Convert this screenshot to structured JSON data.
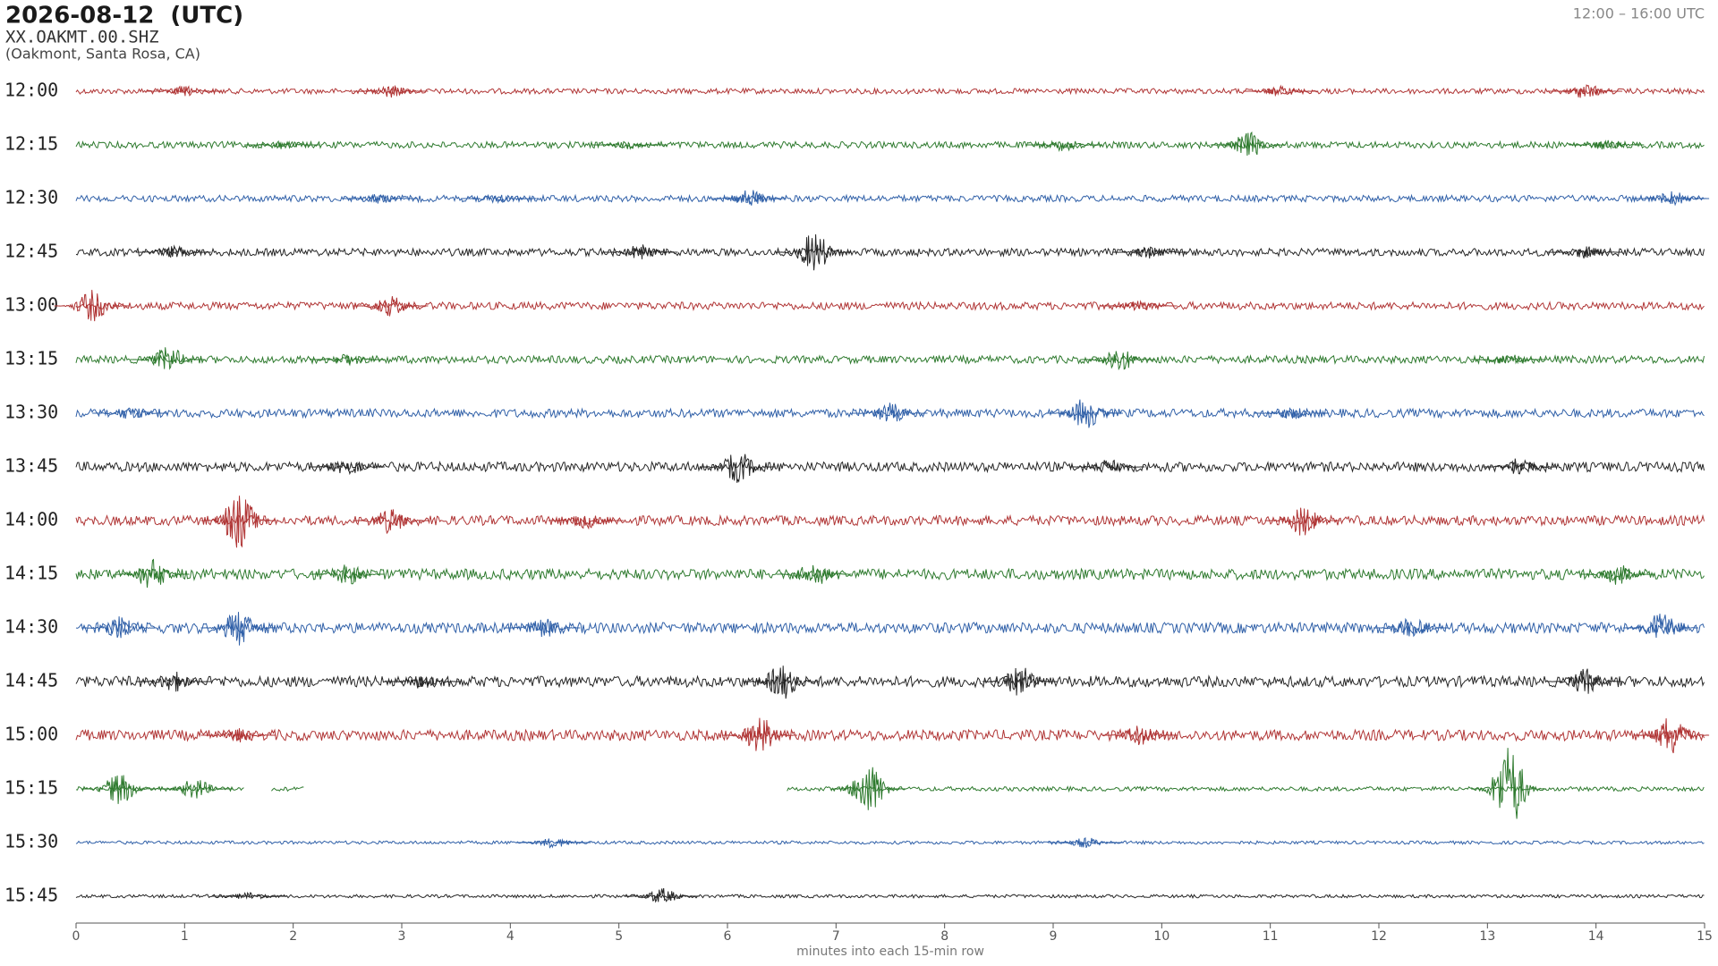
{
  "chart_data": {
    "type": "helicorder",
    "title": "2026-08-12  (UTC)",
    "station": "XX.OAKMT.00.SHZ",
    "location": "(Oakmont, Santa Rosa, CA)",
    "time_range": "12:00 – 16:00 UTC",
    "xlabel": "minutes into each 15-min row",
    "xlim": [
      0,
      15
    ],
    "xticks": [
      0,
      1,
      2,
      3,
      4,
      5,
      6,
      7,
      8,
      9,
      10,
      11,
      12,
      13,
      14,
      15
    ],
    "colors": [
      "#b03535",
      "#2e7a2e",
      "#3060a8",
      "#262626"
    ],
    "rows": [
      {
        "label": "12:00",
        "noise": 0.05,
        "bursts": [
          {
            "x": 1.0,
            "amp": 0.1
          },
          {
            "x": 2.9,
            "amp": 0.12
          },
          {
            "x": 11.1,
            "amp": 0.1
          },
          {
            "x": 13.9,
            "amp": 0.15
          }
        ]
      },
      {
        "label": "12:15",
        "noise": 0.06,
        "bursts": [
          {
            "x": 1.9,
            "amp": 0.1
          },
          {
            "x": 5.1,
            "amp": 0.08
          },
          {
            "x": 9.1,
            "amp": 0.12
          },
          {
            "x": 10.8,
            "amp": 0.25
          },
          {
            "x": 14.1,
            "amp": 0.1
          }
        ]
      },
      {
        "label": "12:30",
        "noise": 0.06,
        "bursts": [
          {
            "x": 2.8,
            "amp": 0.1
          },
          {
            "x": 3.9,
            "amp": 0.1
          },
          {
            "x": 6.2,
            "amp": 0.18
          },
          {
            "x": 14.7,
            "amp": 0.15
          }
        ]
      },
      {
        "label": "12:45",
        "noise": 0.07,
        "bursts": [
          {
            "x": 0.9,
            "amp": 0.12
          },
          {
            "x": 5.2,
            "amp": 0.15
          },
          {
            "x": 6.8,
            "amp": 0.38
          },
          {
            "x": 9.9,
            "amp": 0.12
          },
          {
            "x": 13.9,
            "amp": 0.12
          }
        ]
      },
      {
        "label": "13:00",
        "noise": 0.07,
        "bursts": [
          {
            "x": 0.15,
            "amp": 0.3
          },
          {
            "x": 2.9,
            "amp": 0.2
          },
          {
            "x": 9.8,
            "amp": 0.1
          }
        ]
      },
      {
        "label": "13:15",
        "noise": 0.07,
        "bursts": [
          {
            "x": 0.85,
            "amp": 0.25
          },
          {
            "x": 2.5,
            "amp": 0.12
          },
          {
            "x": 9.6,
            "amp": 0.25
          },
          {
            "x": 13.2,
            "amp": 0.12
          }
        ]
      },
      {
        "label": "13:30",
        "noise": 0.08,
        "bursts": [
          {
            "x": 0.5,
            "amp": 0.12
          },
          {
            "x": 7.5,
            "amp": 0.2
          },
          {
            "x": 9.3,
            "amp": 0.3
          },
          {
            "x": 11.2,
            "amp": 0.12
          }
        ]
      },
      {
        "label": "13:45",
        "noise": 0.09,
        "bursts": [
          {
            "x": 2.5,
            "amp": 0.15
          },
          {
            "x": 6.1,
            "amp": 0.3
          },
          {
            "x": 9.5,
            "amp": 0.15
          },
          {
            "x": 13.3,
            "amp": 0.2
          }
        ]
      },
      {
        "label": "14:00",
        "noise": 0.09,
        "bursts": [
          {
            "x": 1.5,
            "amp": 0.55
          },
          {
            "x": 2.9,
            "amp": 0.25
          },
          {
            "x": 4.7,
            "amp": 0.15
          },
          {
            "x": 11.3,
            "amp": 0.3
          }
        ]
      },
      {
        "label": "14:15",
        "noise": 0.1,
        "bursts": [
          {
            "x": 0.7,
            "amp": 0.3
          },
          {
            "x": 2.5,
            "amp": 0.2
          },
          {
            "x": 6.8,
            "amp": 0.25
          },
          {
            "x": 14.2,
            "amp": 0.2
          }
        ]
      },
      {
        "label": "14:30",
        "noise": 0.1,
        "bursts": [
          {
            "x": 0.4,
            "amp": 0.25
          },
          {
            "x": 1.5,
            "amp": 0.35
          },
          {
            "x": 4.3,
            "amp": 0.2
          },
          {
            "x": 12.3,
            "amp": 0.2
          },
          {
            "x": 14.6,
            "amp": 0.3
          }
        ]
      },
      {
        "label": "14:45",
        "noise": 0.1,
        "bursts": [
          {
            "x": 0.9,
            "amp": 0.2
          },
          {
            "x": 3.2,
            "amp": 0.15
          },
          {
            "x": 6.5,
            "amp": 0.35
          },
          {
            "x": 8.7,
            "amp": 0.3
          },
          {
            "x": 13.9,
            "amp": 0.25
          }
        ]
      },
      {
        "label": "15:00",
        "noise": 0.1,
        "bursts": [
          {
            "x": 1.5,
            "amp": 0.15
          },
          {
            "x": 6.3,
            "amp": 0.35
          },
          {
            "x": 9.8,
            "amp": 0.2
          },
          {
            "x": 14.7,
            "amp": 0.4
          }
        ]
      },
      {
        "label": "15:15",
        "noise": 0.04,
        "segments": [
          [
            0,
            1.55
          ],
          [
            1.8,
            2.1
          ],
          [
            6.55,
            15
          ]
        ],
        "bursts": [
          {
            "x": 0.4,
            "amp": 0.3
          },
          {
            "x": 1.1,
            "amp": 0.2
          },
          {
            "x": 7.3,
            "amp": 0.5
          },
          {
            "x": 13.2,
            "amp": 0.8
          }
        ]
      },
      {
        "label": "15:30",
        "noise": 0.03,
        "bursts": [
          {
            "x": 4.4,
            "amp": 0.1
          },
          {
            "x": 9.3,
            "amp": 0.1
          }
        ]
      },
      {
        "label": "15:45",
        "noise": 0.03,
        "bursts": [
          {
            "x": 1.6,
            "amp": 0.08
          },
          {
            "x": 5.4,
            "amp": 0.15
          }
        ]
      }
    ]
  }
}
